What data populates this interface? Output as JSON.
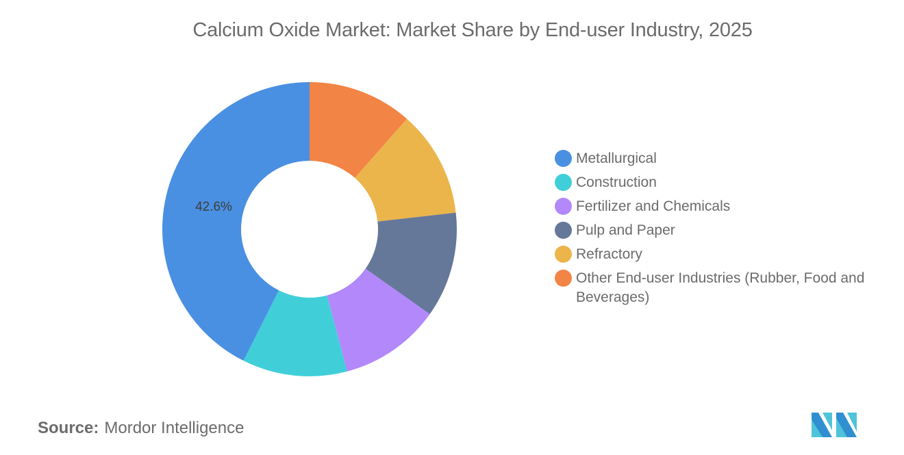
{
  "title": "Calcium Oxide Market: Market Share by End-user Industry, 2025",
  "source": {
    "label": "Source:",
    "value": "Mordor Intelligence"
  },
  "logo": {
    "icon": "mordor-intelligence-logo-icon"
  },
  "chart_data": {
    "type": "pie",
    "variant": "donut",
    "title": "Calcium Oxide Market: Market Share by End-user Industry, 2025",
    "categories": [
      "Metallurgical",
      "Construction",
      "Fertilizer and Chemicals",
      "Pulp and Paper",
      "Refractory",
      "Other End-user Industries (Rubber, Food and Beverages)"
    ],
    "values": [
      42.6,
      11.5,
      11.1,
      11.6,
      11.7,
      11.5
    ],
    "colors": [
      "#4a90e2",
      "#40cfd8",
      "#b388fb",
      "#667899",
      "#ebb54b",
      "#f28445"
    ],
    "data_labels": [
      {
        "category": "Metallurgical",
        "text": "42.6%"
      }
    ],
    "legend_position": "right",
    "start_angle_deg": 0,
    "direction": "counterclockwise-from-top"
  },
  "legend": {
    "items": [
      {
        "label": "Metallurgical",
        "color": "#4a90e2"
      },
      {
        "label": "Construction",
        "color": "#40cfd8"
      },
      {
        "label": "Fertilizer and Chemicals",
        "color": "#b388fb"
      },
      {
        "label": "Pulp and Paper",
        "color": "#667899"
      },
      {
        "label": "Refractory",
        "color": "#ebb54b"
      },
      {
        "label": "Other End-user Industries (Rubber, Food and Beverages)",
        "color": "#f28445"
      }
    ]
  }
}
